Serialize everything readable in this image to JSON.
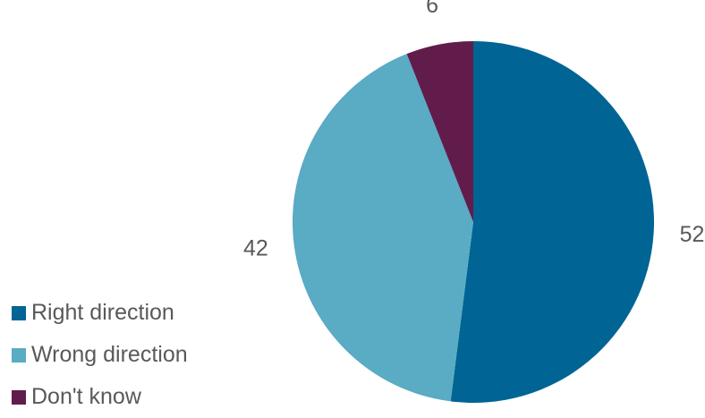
{
  "chart_data": {
    "type": "pie",
    "title": "",
    "categories": [
      "Right direction",
      "Wrong direction",
      "Don't know"
    ],
    "values": [
      52,
      42,
      6
    ],
    "colors": [
      "#006494",
      "#5aabc4",
      "#611c4c"
    ],
    "legend": "bottom-left",
    "start_angle": "12 o'clock",
    "direction": "clockwise"
  }
}
